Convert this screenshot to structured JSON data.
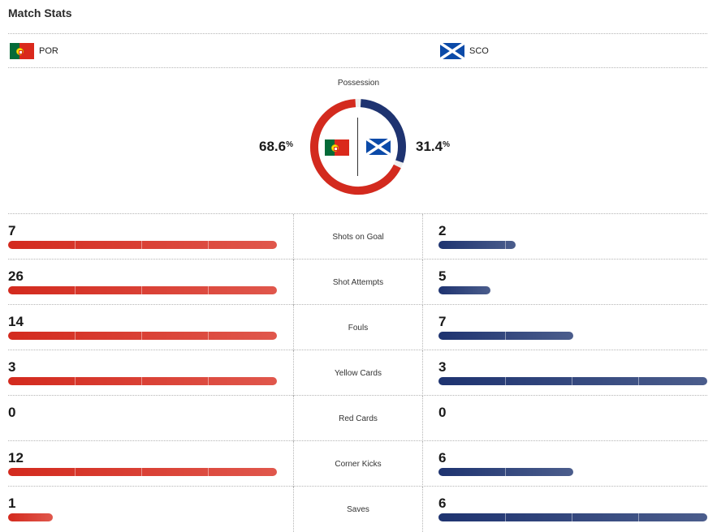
{
  "title": "Match Stats",
  "teams": {
    "home": {
      "abbr": "POR",
      "flag": "portugal-flag",
      "color": "#d32a1e"
    },
    "away": {
      "abbr": "SCO",
      "flag": "scotland-flag",
      "color": "#1e3370"
    }
  },
  "possession": {
    "label": "Possession",
    "home_value": "68.6",
    "away_value": "31.4",
    "unit": "%",
    "home_fraction": 0.686,
    "away_fraction": 0.314
  },
  "stats": [
    {
      "label": "Shots on Goal",
      "home": "7",
      "away": "2",
      "home_fraction": 1.0,
      "away_fraction": 0.286
    },
    {
      "label": "Shot Attempts",
      "home": "26",
      "away": "5",
      "home_fraction": 1.0,
      "away_fraction": 0.192
    },
    {
      "label": "Fouls",
      "home": "14",
      "away": "7",
      "home_fraction": 1.0,
      "away_fraction": 0.5
    },
    {
      "label": "Yellow Cards",
      "home": "3",
      "away": "3",
      "home_fraction": 1.0,
      "away_fraction": 1.0
    },
    {
      "label": "Red Cards",
      "home": "0",
      "away": "0",
      "home_fraction": 0,
      "away_fraction": 0
    },
    {
      "label": "Corner Kicks",
      "home": "12",
      "away": "6",
      "home_fraction": 1.0,
      "away_fraction": 0.5
    },
    {
      "label": "Saves",
      "home": "1",
      "away": "6",
      "home_fraction": 0.167,
      "away_fraction": 1.0
    }
  ]
}
